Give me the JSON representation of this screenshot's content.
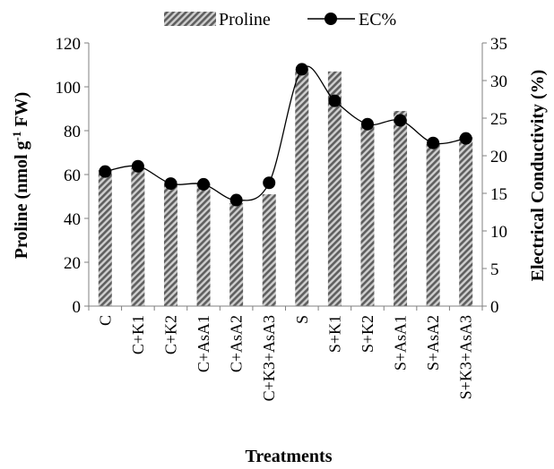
{
  "chart_data": {
    "type": "bar+line",
    "categories": [
      "C",
      "C+K1",
      "C+K2",
      "C+AsA1",
      "C+AsA2",
      "C+K3+AsA3",
      "S",
      "S+K1",
      "S+K2",
      "S+AsA1",
      "S+AsA2",
      "S+K3+AsA3"
    ],
    "series": [
      {
        "name": "Proline",
        "type": "bar",
        "axis": "left",
        "values": [
          62,
          63,
          57,
          56,
          47,
          51,
          108,
          107,
          83,
          89,
          74,
          77
        ]
      },
      {
        "name": "EC%",
        "type": "line",
        "axis": "right",
        "values": [
          17.9,
          18.6,
          16.3,
          16.2,
          14.1,
          16.4,
          31.5,
          27.3,
          24.2,
          24.7,
          21.7,
          22.3
        ]
      }
    ],
    "xlabel": "Treatments",
    "ylabel_left": {
      "main": "Proline (nmol g",
      "sup": "-1",
      "rest": " FW)"
    },
    "ylabel_right": "Electrical Conductivity (%)",
    "ylim_left": [
      0,
      120
    ],
    "ylim_right": [
      0,
      35
    ],
    "yticks_left": [
      "0",
      "20",
      "40",
      "60",
      "80",
      "100",
      "120"
    ],
    "yticks_right": [
      "0",
      "5",
      "10",
      "15",
      "20",
      "25",
      "30",
      "35"
    ],
    "grid": false,
    "legend_position": "top-center",
    "colors": {
      "bar_stripe_dark": "#6b6b6b",
      "bar_stripe_light": "#c8c8c8",
      "line": "#000000",
      "marker": "#000000",
      "axis": "#808080"
    }
  }
}
